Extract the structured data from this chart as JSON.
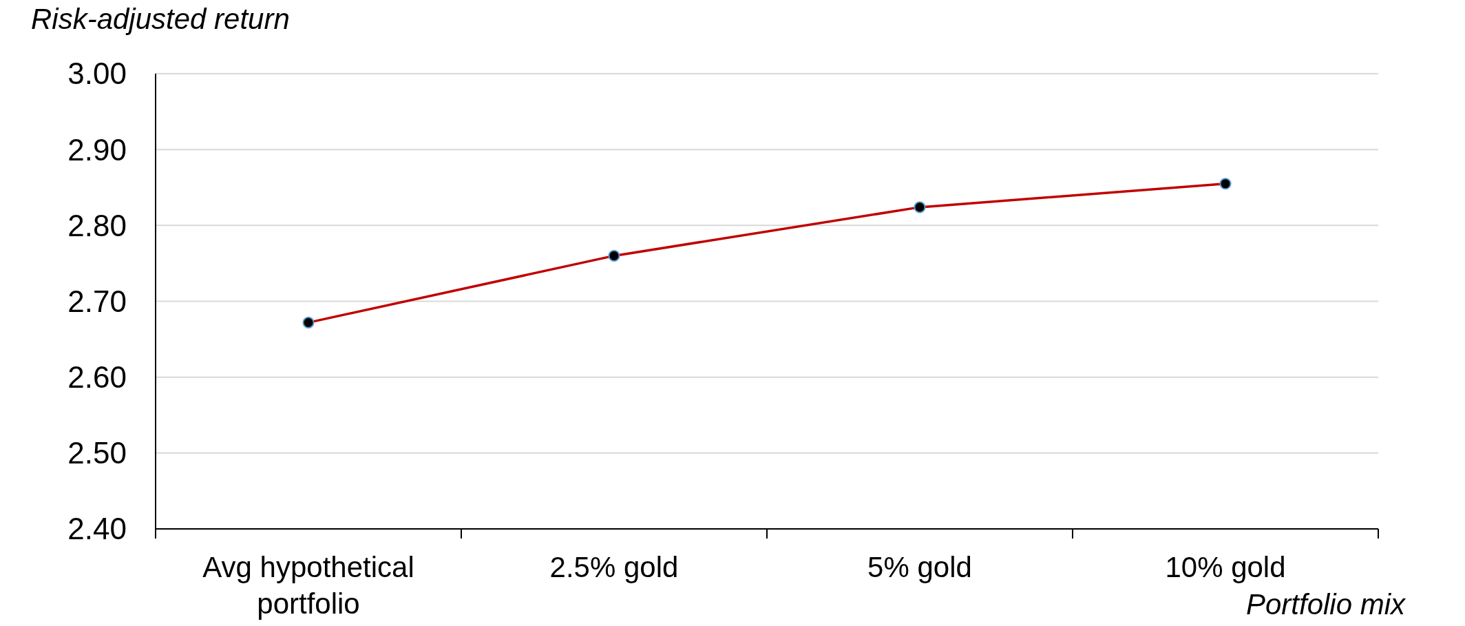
{
  "chart_data": {
    "type": "line",
    "ylabel": "Risk-adjusted return",
    "xlabel": "Portfolio mix",
    "categories": [
      "Avg hypothetical portfolio",
      "2.5% gold",
      "5% gold",
      "10% gold"
    ],
    "series": [
      {
        "color": "#c00000",
        "values": [
          2.672,
          2.76,
          2.824,
          2.855
        ]
      }
    ],
    "ylim": [
      2.4,
      3.0
    ],
    "yticks": [
      {
        "value": 2.4,
        "label": "2.40"
      },
      {
        "value": 2.5,
        "label": "2.50"
      },
      {
        "value": 2.6,
        "label": "2.60"
      },
      {
        "value": 2.7,
        "label": "2.70"
      },
      {
        "value": 2.8,
        "label": "2.80"
      },
      {
        "value": 2.9,
        "label": "2.90"
      },
      {
        "value": 3.0,
        "label": "3.00"
      }
    ],
    "grid": "y",
    "marker": "circle"
  }
}
